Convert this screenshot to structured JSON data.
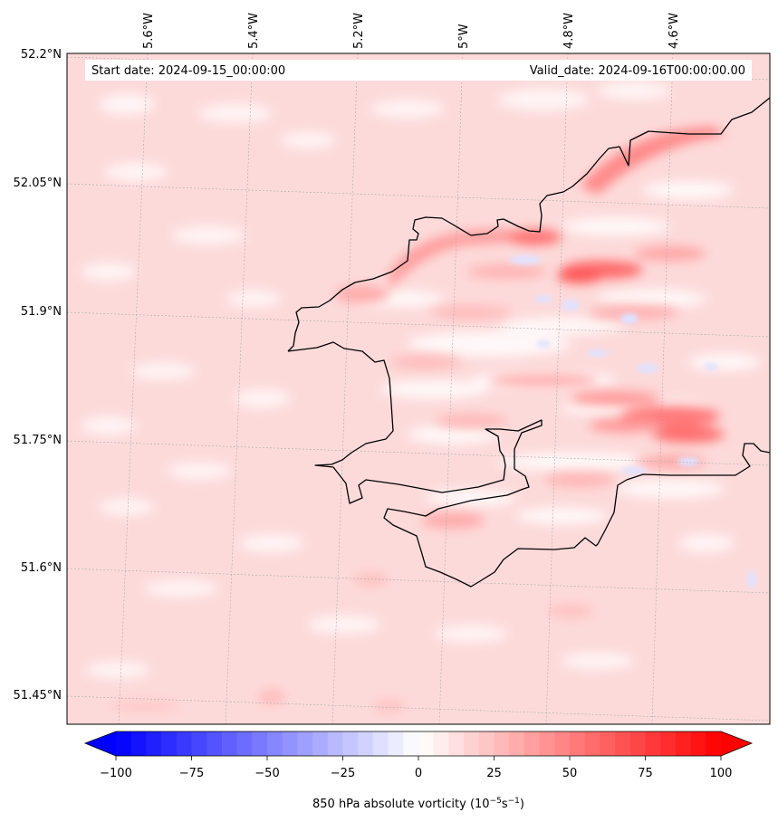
{
  "map": {
    "start_label": "Start date: 2024-09-15_00:00:00",
    "valid_label": "Valid_date: 2024-09-16T00:00:00.00",
    "lat_labels": [
      "52.2°N",
      "52.05°N",
      "51.9°N",
      "51.75°N",
      "51.6°N",
      "51.45°N"
    ],
    "lon_labels": [
      "5.6°W",
      "5.4°W",
      "5.2°W",
      "5°W",
      "4.8°W",
      "4.6°W"
    ],
    "field": "850 hPa absolute vorticity",
    "colormap": "bwr"
  },
  "colorbar": {
    "ticks": [
      "−100",
      "−75",
      "−50",
      "−25",
      "0",
      "25",
      "50",
      "75",
      "100"
    ],
    "label_main": "850 hPa absolute vorticity (10",
    "label_exp1": "−5",
    "label_mid": "s",
    "label_exp2": "−1",
    "label_end": ")",
    "extend": "both",
    "colors": {
      "low": "#0000ff",
      "mid": "#ffffff",
      "high": "#ff0000"
    }
  }
}
